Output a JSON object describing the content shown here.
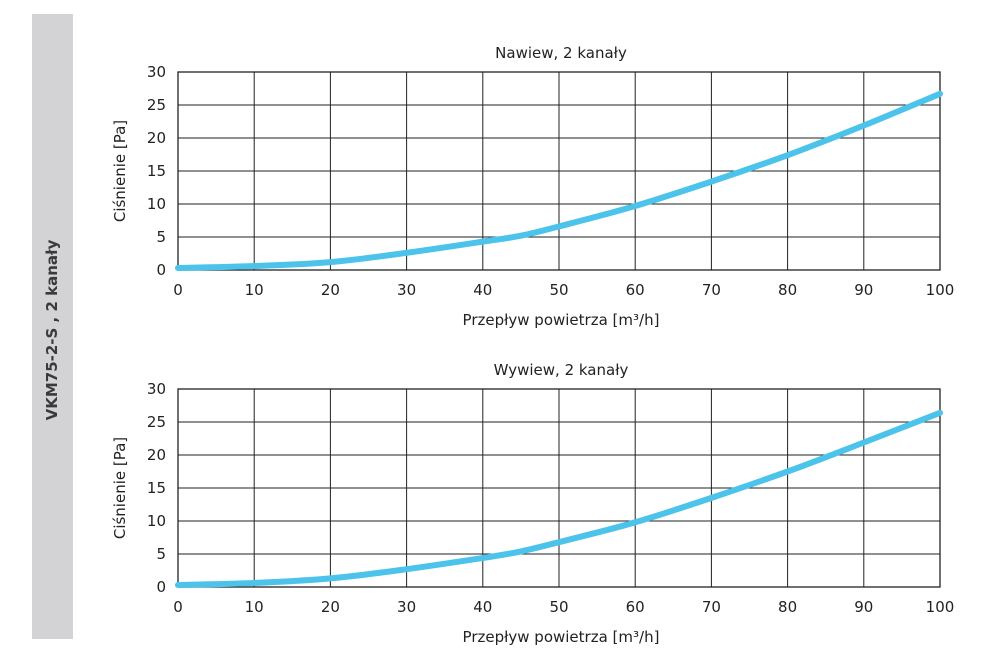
{
  "sidebar": {
    "label": "VKM75-2-S , 2 kanały",
    "background": "#d3d3d5"
  },
  "colors": {
    "curve": "#4cc3ea",
    "grid": "#222222",
    "axis": "#222222"
  },
  "chart_data": [
    {
      "type": "line",
      "title": "Nawiew, 2 kanały",
      "xlabel": "Przepływ powietrza [m³/h]",
      "ylabel": "Ciśnienie [Pa]",
      "xlim": [
        0,
        100
      ],
      "ylim": [
        0,
        30
      ],
      "xticks": [
        0,
        10,
        20,
        30,
        40,
        50,
        60,
        70,
        80,
        90,
        100
      ],
      "yticks": [
        0,
        5,
        10,
        15,
        20,
        25,
        30
      ],
      "grid": true,
      "series": [
        {
          "x": [
            0,
            10,
            20,
            30,
            40,
            45,
            50,
            60,
            70,
            80,
            90,
            100
          ],
          "y": [
            0.3,
            0.6,
            1.2,
            2.6,
            4.3,
            5.2,
            6.6,
            9.7,
            13.4,
            17.4,
            21.9,
            26.7
          ]
        }
      ]
    },
    {
      "type": "line",
      "title": "Wywiew, 2 kanały",
      "xlabel": "Przepływ powietrza [m³/h]",
      "ylabel": "Ciśnienie [Pa]",
      "xlim": [
        0,
        100
      ],
      "ylim": [
        0,
        30
      ],
      "xticks": [
        0,
        10,
        20,
        30,
        40,
        50,
        60,
        70,
        80,
        90,
        100
      ],
      "yticks": [
        0,
        5,
        10,
        15,
        20,
        25,
        30
      ],
      "grid": true,
      "series": [
        {
          "x": [
            0,
            10,
            20,
            30,
            40,
            45,
            50,
            60,
            70,
            80,
            90,
            100
          ],
          "y": [
            0.3,
            0.6,
            1.3,
            2.7,
            4.4,
            5.4,
            6.8,
            9.8,
            13.5,
            17.5,
            21.9,
            26.4
          ]
        }
      ]
    }
  ]
}
